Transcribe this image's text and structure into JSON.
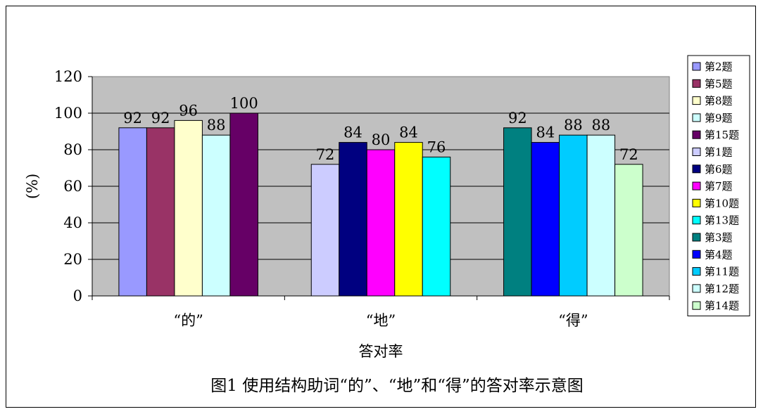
{
  "chart_data": {
    "type": "bar",
    "title": "",
    "xlabel": "答对率",
    "ylabel": "(%)",
    "ylim": [
      0,
      120
    ],
    "yticks": [
      0,
      20,
      40,
      60,
      80,
      100,
      120
    ],
    "grid": true,
    "legend_position": "right",
    "plot_background": "#c0c0c0",
    "groups": [
      {
        "label": "“的”",
        "bars": [
          {
            "name": "第2题",
            "value": 92,
            "color": "#9999ff"
          },
          {
            "name": "第5题",
            "value": 92,
            "color": "#993366"
          },
          {
            "name": "第8题",
            "value": 96,
            "color": "#ffffcc"
          },
          {
            "name": "第9题",
            "value": 88,
            "color": "#ccffff"
          },
          {
            "name": "第15题",
            "value": 100,
            "color": "#660066"
          }
        ]
      },
      {
        "label": "“地”",
        "bars": [
          {
            "name": "第1题",
            "value": 72,
            "color": "#ccccff"
          },
          {
            "name": "第6题",
            "value": 84,
            "color": "#000080"
          },
          {
            "name": "第7题",
            "value": 80,
            "color": "#ff00ff"
          },
          {
            "name": "第10题",
            "value": 84,
            "color": "#ffff00"
          },
          {
            "name": "第13题",
            "value": 76,
            "color": "#00ffff"
          }
        ]
      },
      {
        "label": "“得”",
        "bars": [
          {
            "name": "第3题",
            "value": 92,
            "color": "#008080"
          },
          {
            "name": "第4题",
            "value": 84,
            "color": "#0000ff"
          },
          {
            "name": "第11题",
            "value": 88,
            "color": "#00ccff"
          },
          {
            "name": "第12题",
            "value": 88,
            "color": "#ccffff"
          },
          {
            "name": "第14题",
            "value": 72,
            "color": "#ccffcc"
          }
        ]
      }
    ]
  },
  "caption": "图1 使用结构助词“的”、“地”和“得”的答对率示意图"
}
